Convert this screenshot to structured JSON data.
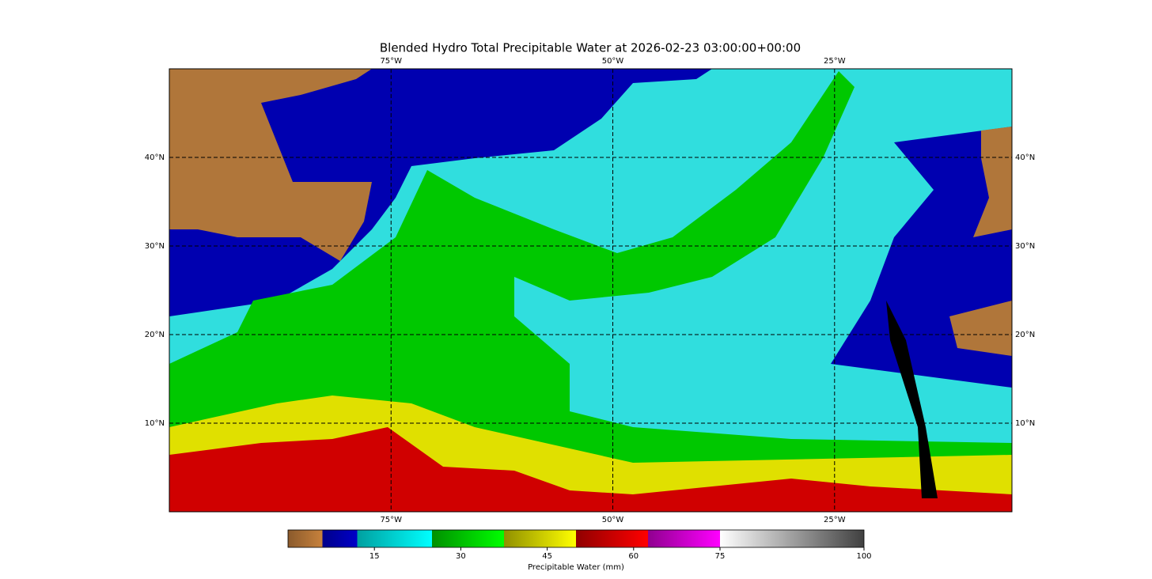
{
  "map": {
    "title": "Blended Hydro Total Precipitable Water at 2026-02-23 03:00:00+00:00",
    "xlim": [
      -100,
      -5
    ],
    "ylim": [
      0,
      50
    ],
    "xticks": [
      {
        "value": -75,
        "label": "75°W"
      },
      {
        "value": -50,
        "label": "50°W"
      },
      {
        "value": -25,
        "label": "25°W"
      }
    ],
    "yticks": [
      {
        "value": 10,
        "label": "10°N"
      },
      {
        "value": 20,
        "label": "20°N"
      },
      {
        "value": 30,
        "label": "30°N"
      },
      {
        "value": 40,
        "label": "40°N"
      }
    ],
    "grid": true
  },
  "colorbar": {
    "label": "Precipitable Water (mm)",
    "lim": [
      0,
      100
    ],
    "ticks": [
      15,
      30,
      45,
      60,
      75,
      100
    ]
  }
}
